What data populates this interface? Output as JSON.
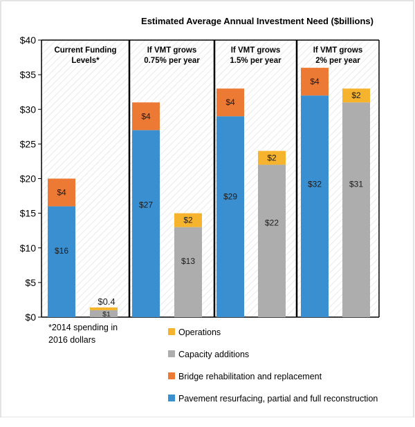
{
  "chart_data": {
    "type": "bar",
    "stacked": true,
    "title": "Estimated Average Annual Investment Need ($billions)",
    "ylim": [
      0,
      40
    ],
    "yticks": [
      "$0",
      "$5",
      "$10",
      "$15",
      "$20",
      "$25",
      "$30",
      "$35",
      "$40"
    ],
    "panels": [
      {
        "label": "Current Funding Levels*"
      },
      {
        "label": "If VMT grows 0.75% per year"
      },
      {
        "label": "If VMT grows 1.5% per year"
      },
      {
        "label": "If VMT grows 2% per year"
      }
    ],
    "footnote": "*2014 spending  in 2016 dollars",
    "series": [
      {
        "name": "Pavement resurfacing, partial and full reconstruction",
        "color": "#3a8fd1"
      },
      {
        "name": "Bridge rehabilitation and replacement",
        "color": "#ec7a34"
      },
      {
        "name": "Capacity additions",
        "color": "#adadad"
      },
      {
        "name": "Operations",
        "color": "#f6b42e"
      }
    ],
    "bars": [
      {
        "panel": 0,
        "slot": 0,
        "segments": [
          {
            "series": "Pavement resurfacing, partial and full reconstruction",
            "value": 16,
            "label": "$16"
          },
          {
            "series": "Bridge rehabilitation and replacement",
            "value": 4,
            "label": "$4"
          }
        ]
      },
      {
        "panel": 0,
        "slot": 1,
        "segments": [
          {
            "series": "Capacity additions",
            "value": 1,
            "label": "$1"
          },
          {
            "series": "Operations",
            "value": 0.4,
            "label": "$0.4"
          }
        ]
      },
      {
        "panel": 1,
        "slot": 0,
        "segments": [
          {
            "series": "Pavement resurfacing, partial and full reconstruction",
            "value": 27,
            "label": "$27"
          },
          {
            "series": "Bridge rehabilitation and replacement",
            "value": 4,
            "label": "$4"
          }
        ]
      },
      {
        "panel": 1,
        "slot": 1,
        "segments": [
          {
            "series": "Capacity additions",
            "value": 13,
            "label": "$13"
          },
          {
            "series": "Operations",
            "value": 2,
            "label": "$2"
          }
        ]
      },
      {
        "panel": 2,
        "slot": 0,
        "segments": [
          {
            "series": "Pavement resurfacing, partial and full reconstruction",
            "value": 29,
            "label": "$29"
          },
          {
            "series": "Bridge rehabilitation and replacement",
            "value": 4,
            "label": "$4"
          }
        ]
      },
      {
        "panel": 2,
        "slot": 1,
        "segments": [
          {
            "series": "Capacity additions",
            "value": 22,
            "label": "$22"
          },
          {
            "series": "Operations",
            "value": 2,
            "label": "$2"
          }
        ]
      },
      {
        "panel": 3,
        "slot": 0,
        "segments": [
          {
            "series": "Pavement resurfacing, partial and full reconstruction",
            "value": 32,
            "label": "$32"
          },
          {
            "series": "Bridge rehabilitation and replacement",
            "value": 4,
            "label": "$4"
          }
        ]
      },
      {
        "panel": 3,
        "slot": 1,
        "segments": [
          {
            "series": "Capacity additions",
            "value": 31,
            "label": "$31"
          },
          {
            "series": "Operations",
            "value": 2,
            "label": "$2"
          }
        ]
      }
    ],
    "legend": {
      "position": "bottom",
      "order": [
        "Operations",
        "Capacity additions",
        "Bridge rehabilitation and replacement",
        "Pavement resurfacing, partial and full reconstruction"
      ]
    },
    "grid": false,
    "background_pattern": "diagonal-hatch"
  }
}
